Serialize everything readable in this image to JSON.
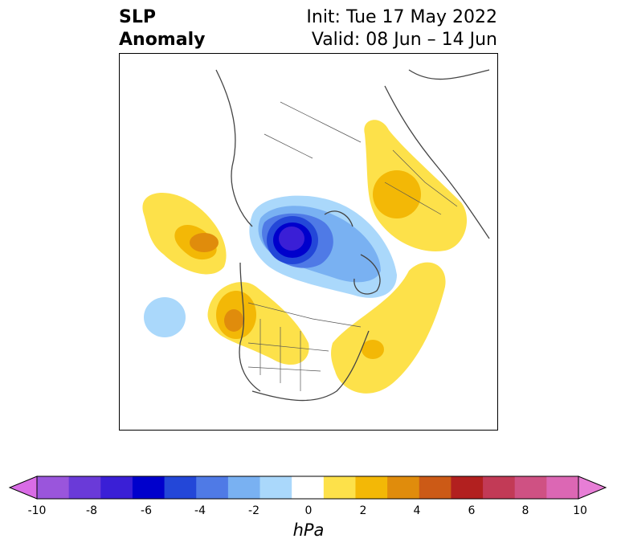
{
  "title": {
    "variable_line1": "SLP",
    "variable_line2": "Anomaly",
    "init": "Init: Tue 17 May 2022",
    "valid": "Valid: 08 Jun – 14 Jun"
  },
  "colorbar": {
    "unit": "hPa",
    "ticks": [
      "-10",
      "-8",
      "-6",
      "-4",
      "-2",
      "0",
      "2",
      "4",
      "6",
      "8",
      "10"
    ],
    "colors": [
      "#d96ce6",
      "#9a55dc",
      "#6a3ad8",
      "#3a1fd6",
      "#0000cc",
      "#2347d8",
      "#4f7ae6",
      "#79b1f2",
      "#aad8fb",
      "#ffffff",
      "#fde14a",
      "#f3b806",
      "#e08c0c",
      "#cc5a16",
      "#b2201f",
      "#c23a56",
      "#cf5183",
      "#dc67b4",
      "#e77ed6"
    ]
  }
}
